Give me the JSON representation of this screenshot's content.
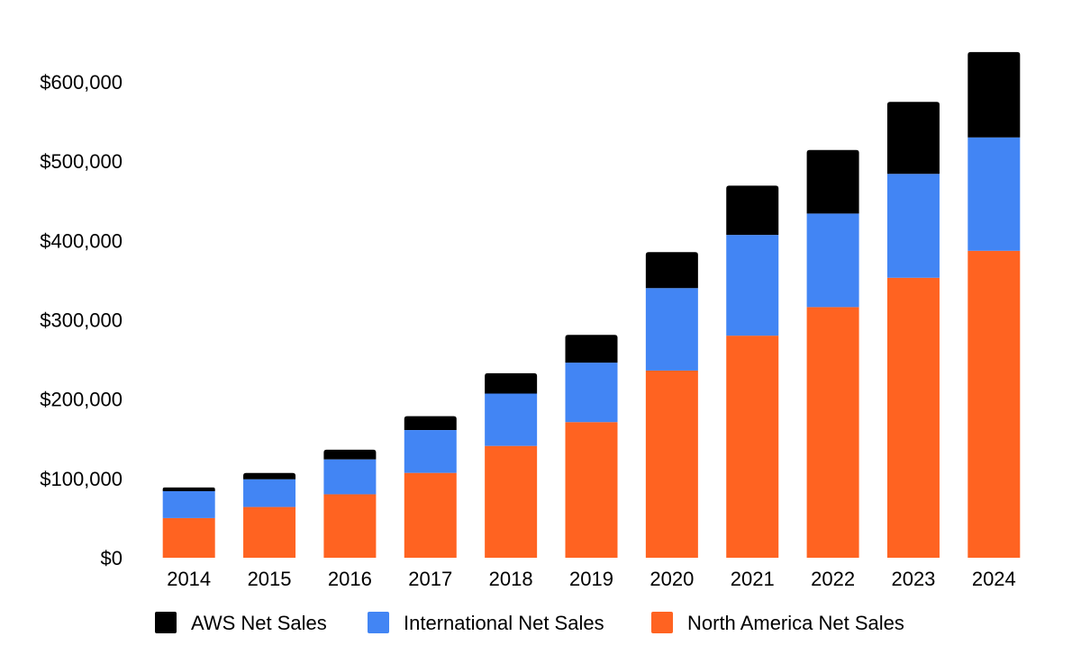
{
  "chart_data": {
    "type": "bar",
    "stacked": true,
    "categories": [
      "2014",
      "2015",
      "2016",
      "2017",
      "2018",
      "2019",
      "2020",
      "2021",
      "2022",
      "2023",
      "2024"
    ],
    "series": [
      {
        "name": "North America Net Sales",
        "color": "#FF6321",
        "values": [
          50000,
          64000,
          80000,
          107000,
          141000,
          171000,
          236000,
          280000,
          316000,
          353000,
          387000
        ]
      },
      {
        "name": "International Net Sales",
        "color": "#4285F4",
        "values": [
          34000,
          35000,
          44000,
          54000,
          66000,
          75000,
          104000,
          127000,
          118000,
          131000,
          143000
        ]
      },
      {
        "name": "AWS Net Sales",
        "color": "#000000",
        "values": [
          4600,
          7900,
          12200,
          17500,
          25700,
          35000,
          45400,
          62200,
          80100,
          90800,
          107600
        ]
      }
    ],
    "legend_order": [
      "AWS Net Sales",
      "International Net Sales",
      "North America Net Sales"
    ],
    "legend_position": "bottom",
    "ylim": [
      0,
      600000
    ],
    "yticks": [
      0,
      100000,
      200000,
      300000,
      400000,
      500000,
      600000
    ],
    "ytick_labels": [
      "$0",
      "$100,000",
      "$200,000",
      "$300,000",
      "$400,000",
      "$500,000",
      "$600,000"
    ],
    "grid": false,
    "title": "",
    "xlabel": "",
    "ylabel": ""
  }
}
